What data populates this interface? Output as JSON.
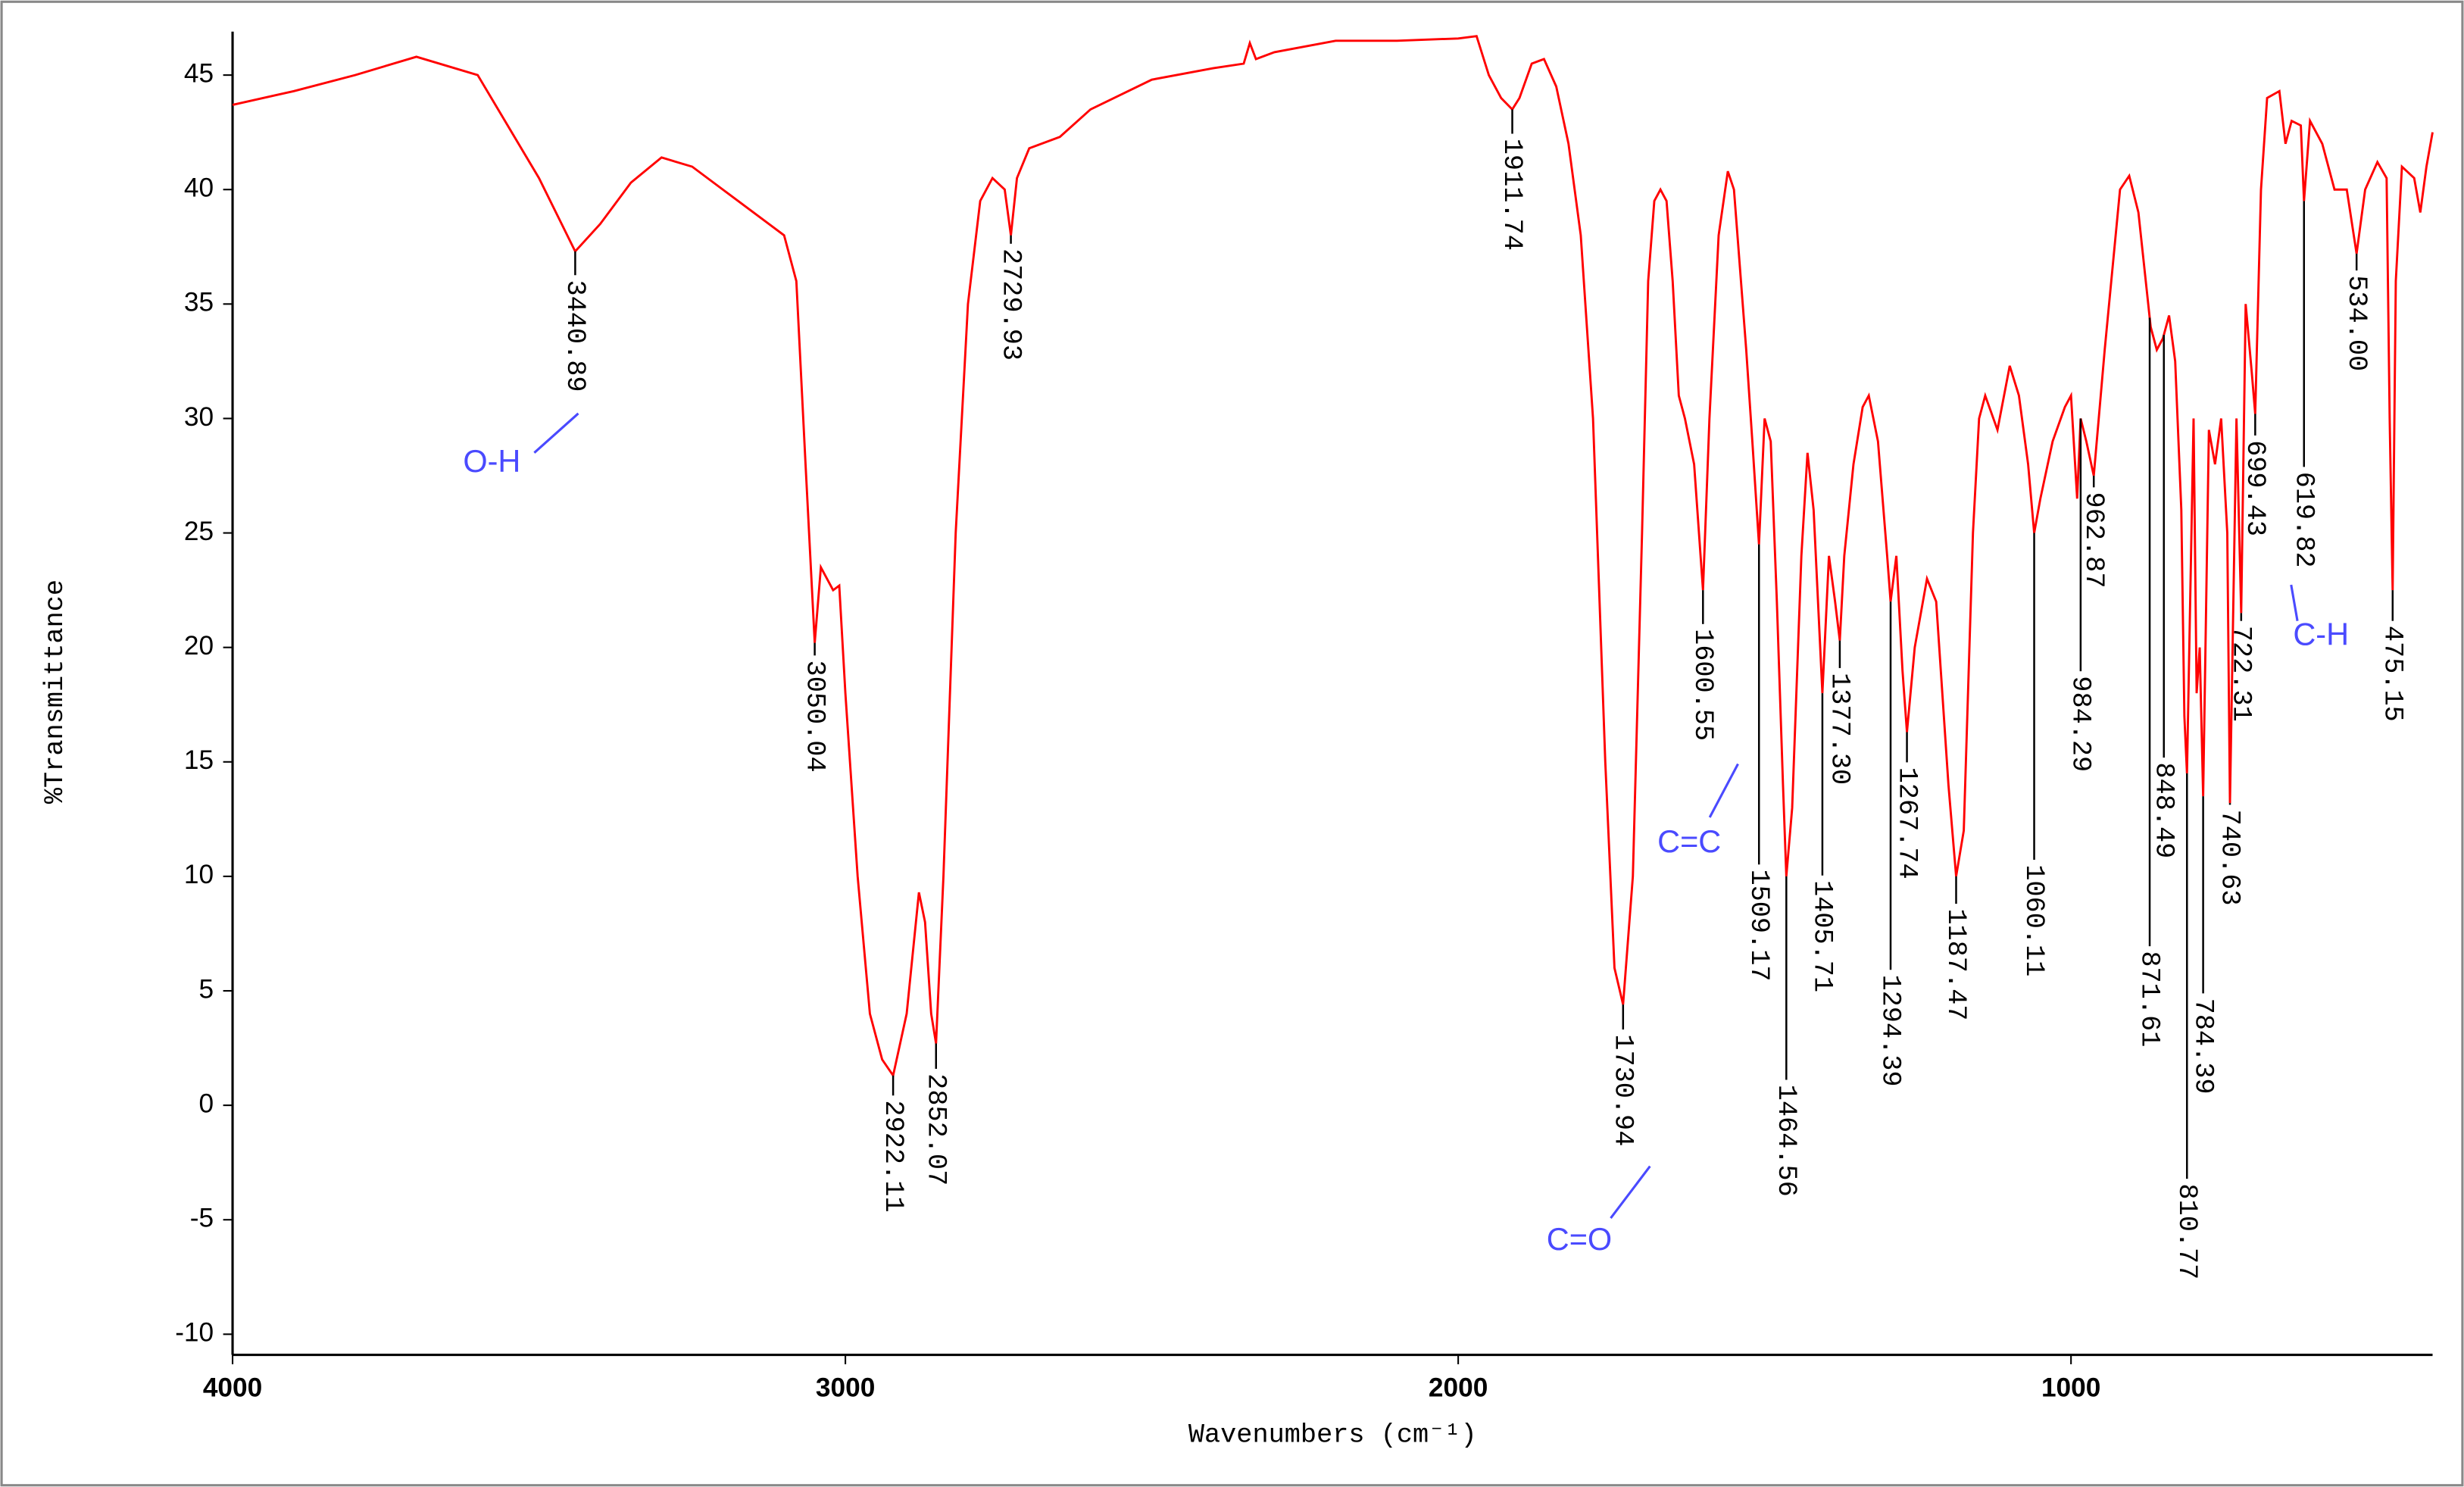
{
  "chart_data": {
    "type": "line",
    "x_label": "Wavenumbers (cm⁻¹)",
    "y_label": "%Transmittance",
    "color": "#ff0000",
    "xlim": [
      4000,
      410
    ],
    "ylim": [
      -10.9,
      46.9
    ],
    "xticks": [
      4000,
      3000,
      2000,
      1000
    ],
    "yticks": [
      -10,
      -5,
      0,
      5,
      10,
      15,
      20,
      25,
      30,
      35,
      40,
      45
    ],
    "grid": false,
    "x": [
      4000,
      3900,
      3800,
      3700,
      3600,
      3500,
      3440.89,
      3400,
      3350,
      3300,
      3250,
      3200,
      3150,
      3100,
      3080,
      3065,
      3050.04,
      3040,
      3020,
      3010,
      3000,
      2980,
      2960,
      2940,
      2922.11,
      2900,
      2880,
      2870,
      2860,
      2852.07,
      2840,
      2820,
      2800,
      2780,
      2760,
      2740,
      2729.93,
      2720,
      2700,
      2650,
      2600,
      2500,
      2400,
      2350,
      2340,
      2330,
      2300,
      2200,
      2100,
      2000,
      1970,
      1950,
      1930,
      1911.74,
      1900,
      1880,
      1860,
      1840,
      1820,
      1800,
      1780,
      1760,
      1745,
      1730.94,
      1715,
      1700,
      1690,
      1680,
      1670,
      1660,
      1650,
      1640,
      1630,
      1615,
      1600.55,
      1590,
      1575,
      1560,
      1550,
      1530,
      1520,
      1509.17,
      1500,
      1490,
      1480,
      1470,
      1464.56,
      1455,
      1440,
      1430,
      1420,
      1405.71,
      1395,
      1385,
      1377.3,
      1370,
      1355,
      1340,
      1330,
      1315,
      1300,
      1294.39,
      1285,
      1275,
      1267.74,
      1255,
      1235,
      1220,
      1200,
      1187.47,
      1175,
      1160,
      1150,
      1140,
      1120,
      1100,
      1085,
      1070,
      1060.11,
      1050,
      1030,
      1010,
      1000,
      990,
      984.29,
      975,
      962.87,
      945,
      920,
      905,
      890,
      870,
      860,
      850,
      840,
      830,
      820,
      815,
      810.77,
      800,
      795,
      790,
      784.39,
      775,
      765,
      755,
      745,
      740.63,
      730,
      722.31,
      715,
      705,
      699.43,
      690,
      680,
      660,
      650,
      640,
      625,
      619.82,
      610,
      590,
      570,
      550,
      534,
      520,
      500,
      485,
      480,
      475.15,
      470,
      460,
      440,
      430,
      420,
      410
    ],
    "values": [
      43.7,
      44.3,
      45.0,
      45.8,
      45.0,
      40.5,
      37.3,
      38.5,
      40.3,
      41.4,
      41.0,
      40.0,
      39.0,
      38.0,
      36,
      28,
      20.2,
      23.5,
      22.5,
      22.7,
      18,
      10,
      4,
      2,
      1.3,
      4,
      9.3,
      8,
      4,
      2.7,
      10,
      25,
      35,
      39.5,
      40.5,
      40,
      38,
      40.5,
      41.8,
      42.3,
      43.5,
      44.8,
      45.3,
      45.5,
      46.4,
      45.7,
      46.0,
      46.5,
      46.5,
      46.6,
      46.7,
      45,
      44,
      43.5,
      44,
      45.5,
      45.7,
      44.5,
      42,
      38,
      30,
      15,
      6,
      4.4,
      10,
      25,
      36,
      39.5,
      40,
      39.5,
      36,
      31,
      30,
      28,
      22.5,
      30,
      38,
      40.8,
      40,
      33,
      29,
      24.5,
      30,
      29,
      22,
      14,
      10,
      13,
      24,
      28.5,
      26,
      18,
      24,
      22,
      20.3,
      24,
      28,
      30.5,
      31,
      29,
      24,
      22,
      24,
      19,
      16.3,
      20,
      23,
      22,
      14,
      10,
      12,
      25,
      30,
      31,
      29.5,
      32.3,
      31,
      28,
      25,
      26.5,
      29,
      30.5,
      31,
      26.5,
      30,
      29,
      27.5,
      33,
      40,
      40.6,
      39,
      34,
      33,
      33.5,
      34.5,
      32.5,
      26,
      17,
      14.5,
      30,
      18,
      20,
      13.5,
      29.5,
      28,
      30,
      25,
      13.2,
      30,
      21.5,
      35,
      32,
      30.2,
      40,
      44,
      44.3,
      42,
      43,
      42.8,
      39.5,
      43,
      42,
      40,
      40,
      37.2,
      40,
      41.2,
      40.5,
      30,
      22.5,
      36,
      41,
      40.5,
      39,
      41,
      42.5
    ],
    "peaks": [
      {
        "x": 3440.89
      },
      {
        "x": 3050.04
      },
      {
        "x": 2922.11
      },
      {
        "x": 2852.07
      },
      {
        "x": 2729.93
      },
      {
        "x": 1911.74
      },
      {
        "x": 1730.94
      },
      {
        "x": 1600.55
      },
      {
        "x": 1509.17
      },
      {
        "x": 1464.56
      },
      {
        "x": 1405.71
      },
      {
        "x": 1377.3,
        "label": "1377.30"
      },
      {
        "x": 1294.39
      },
      {
        "x": 1267.74
      },
      {
        "x": 1187.47
      },
      {
        "x": 1060.11
      },
      {
        "x": 984.29
      },
      {
        "x": 962.87
      },
      {
        "x": 871.61
      },
      {
        "x": 848.49
      },
      {
        "x": 810.77
      },
      {
        "x": 784.39
      },
      {
        "x": 740.63
      },
      {
        "x": 722.31
      },
      {
        "x": 699.43
      },
      {
        "x": 619.82
      },
      {
        "x": 534,
        "label": "534.00"
      },
      {
        "x": 475.15
      }
    ],
    "annotations": [
      "O-H",
      "C=C",
      "C=O",
      "C-H"
    ]
  }
}
